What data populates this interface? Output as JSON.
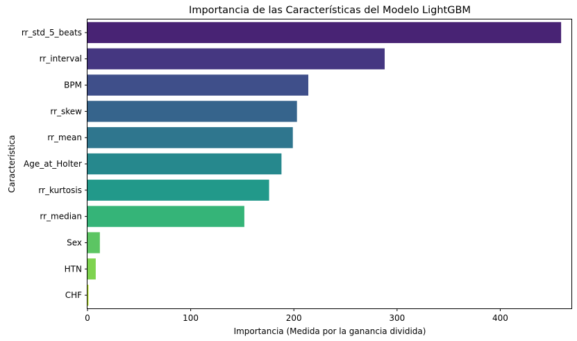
{
  "chart_data": {
    "type": "bar",
    "orientation": "horizontal",
    "title": "Importancia de las Características del Modelo LightGBM",
    "xlabel": "Importancia (Medida por la ganancia dividida)",
    "ylabel": "Característica",
    "categories": [
      "rr_std_5_beats",
      "rr_interval",
      "BPM",
      "rr_skew",
      "rr_mean",
      "Age_at_Holter",
      "rr_kurtosis",
      "rr_median",
      "Sex",
      "HTN",
      "CHF"
    ],
    "values": [
      459,
      288,
      214,
      203,
      199,
      188,
      176,
      152,
      12,
      8,
      1
    ],
    "colors": [
      "#482374",
      "#453781",
      "#3f4f8a",
      "#36648c",
      "#2f768e",
      "#26888d",
      "#22998a",
      "#35b478",
      "#5cc563",
      "#7ed34f",
      "#b5de2b"
    ],
    "xlim": [
      0,
      469
    ],
    "xticks": [
      0,
      100,
      200,
      300,
      400
    ],
    "grid": false
  }
}
